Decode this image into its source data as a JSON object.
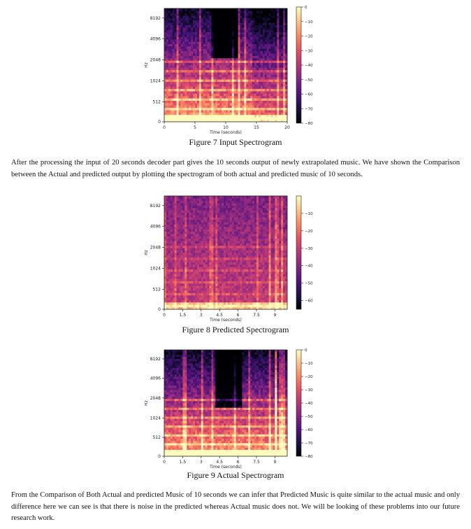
{
  "figures": [
    {
      "caption": "Figure 7 Input Spectrogram",
      "chart_data": {
        "type": "heatmap",
        "xlabel": "Time (seconds)",
        "ylabel": "Hz",
        "x_ticks": [
          "0",
          "5",
          "10",
          "15",
          "20"
        ],
        "x_tick_values": [
          0,
          5,
          10,
          15,
          20
        ],
        "xlim": [
          0,
          20
        ],
        "y_ticks": [
          "0",
          "512",
          "1024",
          "2048",
          "4096",
          "8192"
        ],
        "colorbar_ticks": [
          "0",
          "−10",
          "−20",
          "−30",
          "−40",
          "−50",
          "−60",
          "−70",
          "−80"
        ],
        "colorbar_values": [
          0,
          -10,
          -20,
          -30,
          -40,
          -50,
          -60,
          -70,
          -80
        ],
        "colorbar_range": [
          -80,
          0
        ]
      }
    },
    {
      "caption": "Figure 8 Predicted Spectrogram",
      "chart_data": {
        "type": "heatmap",
        "xlabel": "Time (seconds)",
        "ylabel": "Hz",
        "x_ticks": [
          "0",
          "1.5",
          "3",
          "4.5",
          "6",
          "7.5",
          "9"
        ],
        "x_tick_values": [
          0,
          1.5,
          3,
          4.5,
          6,
          7.5,
          9
        ],
        "xlim": [
          0,
          10
        ],
        "y_ticks": [
          "0",
          "512",
          "1024",
          "2048",
          "4096",
          "8192"
        ],
        "colorbar_ticks": [
          "−10",
          "−20",
          "−30",
          "−40",
          "−50",
          "−60"
        ],
        "colorbar_values": [
          -10,
          -20,
          -30,
          -40,
          -50,
          -60
        ],
        "colorbar_range": [
          -65,
          0
        ]
      }
    },
    {
      "caption": "Figure 9 Actual Spectrogram",
      "chart_data": {
        "type": "heatmap",
        "xlabel": "Time (seconds)",
        "ylabel": "Hz",
        "x_ticks": [
          "0",
          "1.5",
          "3",
          "4.5",
          "6",
          "7.5",
          "9"
        ],
        "x_tick_values": [
          0,
          1.5,
          3,
          4.5,
          6,
          7.5,
          9
        ],
        "xlim": [
          0,
          10
        ],
        "y_ticks": [
          "0",
          "512",
          "1024",
          "2048",
          "4096",
          "8192"
        ],
        "colorbar_ticks": [
          "0",
          "−10",
          "−20",
          "−30",
          "−40",
          "−50",
          "−60",
          "−70",
          "−80"
        ],
        "colorbar_values": [
          0,
          -10,
          -20,
          -30,
          -40,
          -50,
          -60,
          -70,
          -80
        ],
        "colorbar_range": [
          -80,
          0
        ]
      }
    }
  ],
  "paragraphs": [
    "After the processing the input of 20 seconds decoder part gives the 10 seconds output of newly extrapolated music. We have shown the Comparison between the Actual and predicted output by plotting the spectrogram of both actual and predicted music of 10 seconds.",
    "From the Comparison of Both Actual and predicted Music of 10 seconds we can infer that Predicted Music is quite similar to the actual music and only difference here we can see is that there is noise in the predicted whereas Actual music does not. We will be looking of these problems into our future research work."
  ],
  "colors": {
    "magma": [
      "#000004",
      "#1c1044",
      "#4f127b",
      "#812581",
      "#b5367a",
      "#e55064",
      "#fb8761",
      "#fec287",
      "#fcfdbf"
    ]
  }
}
